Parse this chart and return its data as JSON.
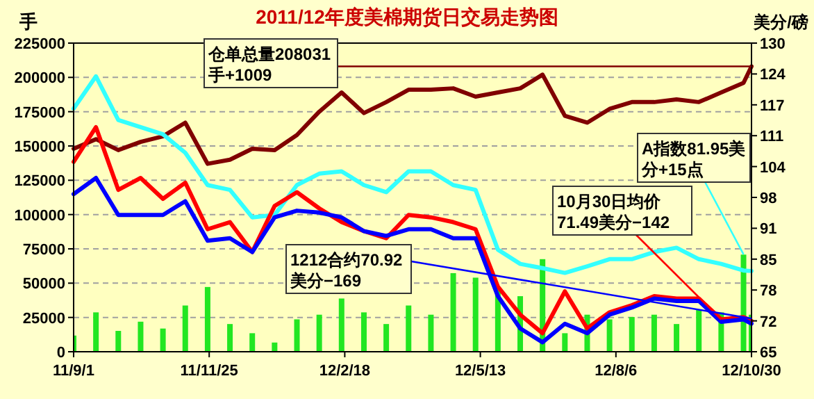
{
  "chart_data": {
    "type": "line",
    "title": "2011/12年度美棉期货日交易走势图",
    "ylabel": "手",
    "y2label": "美分/磅",
    "x": [
      "2011-09-01",
      "2011-09-15",
      "2011-09-29",
      "2011-10-13",
      "2011-10-27",
      "2011-11-10",
      "2011-11-24",
      "2011-12-08",
      "2011-12-22",
      "2012-01-05",
      "2012-01-19",
      "2012-02-02",
      "2012-02-16",
      "2012-03-01",
      "2012-03-15",
      "2012-03-29",
      "2012-04-12",
      "2012-04-26",
      "2012-05-10",
      "2012-05-24",
      "2012-06-07",
      "2012-06-21",
      "2012-07-05",
      "2012-07-19",
      "2012-08-02",
      "2012-08-16",
      "2012-08-30",
      "2012-09-13",
      "2012-09-27",
      "2012-10-11",
      "2012-10-25",
      "2012-10-30"
    ],
    "series": [
      {
        "type": "bar",
        "axis": "y",
        "color": "#22e622",
        "values": [
          11800,
          28700,
          15200,
          21900,
          16900,
          33700,
          47200,
          20200,
          13500,
          6700,
          23600,
          27000,
          38800,
          28700,
          20200,
          33700,
          27000,
          57300,
          54000,
          47200,
          40500,
          67500,
          13500,
          27000,
          23600,
          25300,
          27000,
          20200,
          30400,
          28700,
          70800,
          27000
        ]
      },
      {
        "axis": "y",
        "color": "#800000",
        "values": [
          148000,
          155000,
          147000,
          153000,
          157000,
          167000,
          137000,
          140000,
          148000,
          147000,
          158000,
          175000,
          189000,
          174000,
          182000,
          191000,
          191000,
          192000,
          186000,
          189000,
          192000,
          202000,
          172000,
          167000,
          177000,
          182000,
          182000,
          184000,
          182000,
          189000,
          196000,
          208000
        ]
      },
      {
        "axis": "y2",
        "color": "#33ffff",
        "values": [
          116.2,
          123,
          113.8,
          112.3,
          110.8,
          106.9,
          100.1,
          99.1,
          93.3,
          93.8,
          100.1,
          102.5,
          103,
          100.1,
          98.6,
          103,
          103,
          100.1,
          99.1,
          86.5,
          83.5,
          82.6,
          81.6,
          83,
          84.5,
          84.5,
          86,
          86.9,
          84.5,
          83.5,
          82.1,
          82
        ]
      },
      {
        "axis": "y2",
        "color": "#ff0000",
        "values": [
          105,
          112.3,
          99.1,
          101.6,
          97.2,
          100.6,
          90.8,
          92.3,
          86,
          95.7,
          98.6,
          95.2,
          92.3,
          90.4,
          88.9,
          93.8,
          93.3,
          92.3,
          90.8,
          78.7,
          72.8,
          68.9,
          77.7,
          69.9,
          73.3,
          74.8,
          76.7,
          76.2,
          76.2,
          71.8,
          72.3,
          71.5
        ]
      },
      {
        "axis": "y2",
        "color": "#0000ff",
        "values": [
          98.2,
          101.6,
          93.8,
          93.8,
          93.8,
          96.7,
          88.4,
          88.9,
          86,
          93.3,
          94.7,
          94.3,
          93.3,
          90.4,
          89.4,
          90.8,
          90.8,
          88.9,
          88.9,
          76.7,
          69.9,
          67,
          70.9,
          68.9,
          72.8,
          74.3,
          76.2,
          75.7,
          75.7,
          71.3,
          71.8,
          70.9
        ]
      }
    ],
    "xlim": [
      "2011-09-01",
      "2012-10-30"
    ],
    "xticks": [
      {
        "value": "2011-09-01",
        "label": "11/9/1"
      },
      {
        "value": "2011-11-25",
        "label": "11/11/25"
      },
      {
        "value": "2012-02-18",
        "label": "12/2/18"
      },
      {
        "value": "2012-05-13",
        "label": "12/5/13"
      },
      {
        "value": "2012-08-06",
        "label": "12/8/6"
      },
      {
        "value": "2012-10-30",
        "label": "12/10/30"
      }
    ],
    "ylim": [
      0,
      225000
    ],
    "yticks": [
      0,
      25000,
      50000,
      75000,
      100000,
      125000,
      150000,
      175000,
      200000,
      225000
    ],
    "y2lim": [
      65,
      130
    ],
    "y2ticks": [
      65,
      {
        "value": 71.5,
        "label": "72"
      },
      78,
      {
        "value": 84.5,
        "label": "85"
      },
      91,
      {
        "value": 97.5,
        "label": "98"
      },
      104,
      {
        "value": 110.5,
        "label": "111"
      },
      117,
      {
        "value": 123.5,
        "label": "124"
      },
      130
    ],
    "grid": "y",
    "annotations": [
      {
        "text": "仓单总量208031手+1009",
        "x": "2012-10-30",
        "y": 208000
      },
      {
        "text": "A指数81.95美分+15点",
        "x": "2012-10-25",
        "y": 71000
      },
      {
        "text": "10月30日均价71.49美分−142",
        "x": "2012-10-11",
        "y": 23500
      },
      {
        "text": "1212合约70.92美分−169",
        "x": "2012-10-30",
        "y": 24200
      }
    ]
  }
}
